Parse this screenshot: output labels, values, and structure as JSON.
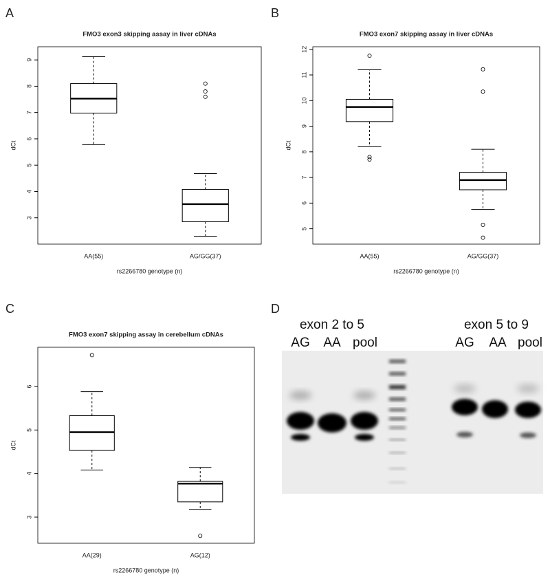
{
  "chart_data": [
    {
      "type": "box",
      "panel_label": "A",
      "title": "FMO3 exon3 skipping assay in liver cDNAs",
      "x_label": "rs2266780 genotype (n)",
      "y_label": "dCt",
      "ylim": [
        2.0,
        9.5
      ],
      "yticks": [
        3,
        4,
        5,
        6,
        7,
        8,
        9
      ],
      "categories": [
        "AA(55)",
        "AG/GG(37)"
      ],
      "boxes": [
        {
          "min": 5.78,
          "q1": 6.98,
          "median": 7.53,
          "q3": 8.1,
          "max": 9.12,
          "outliers": []
        },
        {
          "min": 2.3,
          "q1": 2.85,
          "median": 3.52,
          "q3": 4.08,
          "max": 4.68,
          "outliers": [
            7.6,
            7.8,
            8.1
          ]
        }
      ]
    },
    {
      "type": "box",
      "panel_label": "B",
      "title": "FMO3 exon7 skipping assay in liver cDNAs",
      "x_label": "rs2266780 genotype (n)",
      "y_label": "dCt",
      "ylim": [
        4.4,
        12.1
      ],
      "yticks": [
        5,
        6,
        7,
        8,
        9,
        10,
        11,
        12
      ],
      "categories": [
        "AA(55)",
        "AG/GG(37)"
      ],
      "boxes": [
        {
          "min": 8.2,
          "q1": 9.18,
          "median": 9.75,
          "q3": 10.05,
          "max": 11.2,
          "outliers": [
            7.7,
            7.8,
            11.75
          ]
        },
        {
          "min": 5.75,
          "q1": 6.52,
          "median": 6.9,
          "q3": 7.2,
          "max": 8.1,
          "outliers": [
            4.65,
            5.15,
            10.35,
            11.22
          ]
        }
      ]
    },
    {
      "type": "box",
      "panel_label": "C",
      "title": "FMO3 exon7 skipping assay in cerebellum cDNAs",
      "x_label": "rs2266780 genotype (n)",
      "y_label": "dCt",
      "ylim": [
        2.4,
        6.9
      ],
      "yticks": [
        3,
        4,
        5,
        6
      ],
      "categories": [
        "AA(29)",
        "AG(12)"
      ],
      "boxes": [
        {
          "min": 4.08,
          "q1": 4.53,
          "median": 4.95,
          "q3": 5.33,
          "max": 5.88,
          "outliers": [
            6.72
          ]
        },
        {
          "min": 3.18,
          "q1": 3.35,
          "median": 3.77,
          "q3": 3.82,
          "max": 4.14,
          "outliers": [
            2.57
          ]
        }
      ]
    }
  ],
  "gel": {
    "panel_label": "D",
    "groups": [
      {
        "label": "exon 2 to 5",
        "lanes": [
          "AG",
          "AA",
          "pool"
        ]
      },
      {
        "label": "exon 5 to 9",
        "lanes": [
          "AG",
          "AA",
          "pool"
        ]
      }
    ]
  }
}
